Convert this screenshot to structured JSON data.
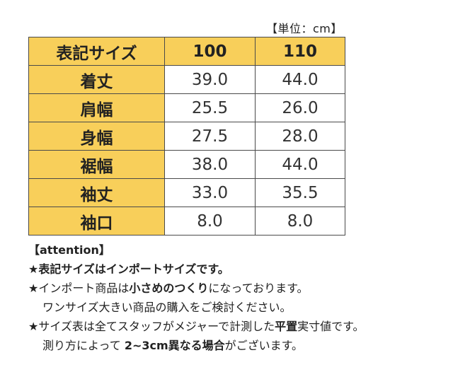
{
  "unit_label": "【単位：cm】",
  "table": {
    "header": {
      "label": "表記サイズ",
      "sizes": [
        "100",
        "110"
      ]
    },
    "rows": [
      {
        "label": "着丈",
        "values": [
          "39.0",
          "44.0"
        ]
      },
      {
        "label": "肩幅",
        "values": [
          "25.5",
          "26.0"
        ]
      },
      {
        "label": "身幅",
        "values": [
          "27.5",
          "28.0"
        ]
      },
      {
        "label": "裾幅",
        "values": [
          "38.0",
          "44.0"
        ]
      },
      {
        "label": "袖丈",
        "values": [
          "33.0",
          "35.5"
        ]
      },
      {
        "label": "袖口",
        "values": [
          "8.0",
          "8.0"
        ]
      }
    ]
  },
  "notes": {
    "heading": "【attention】",
    "n1": "★表記サイズはインポートサイズです。",
    "n2_a": "★インポート商品は",
    "n2_b": "小さめのつくり",
    "n2_c": "になっております。",
    "n3": "ワンサイズ大きい商品の購入をご検討ください。",
    "n4_a": "★サイズ表は全てスタッフがメジャーで計測した",
    "n4_b": "平置",
    "n4_c": "実寸値です。",
    "n5_a": "測り方によって ",
    "n5_b": "2~3cm異なる場合",
    "n5_c": "がございます。"
  }
}
